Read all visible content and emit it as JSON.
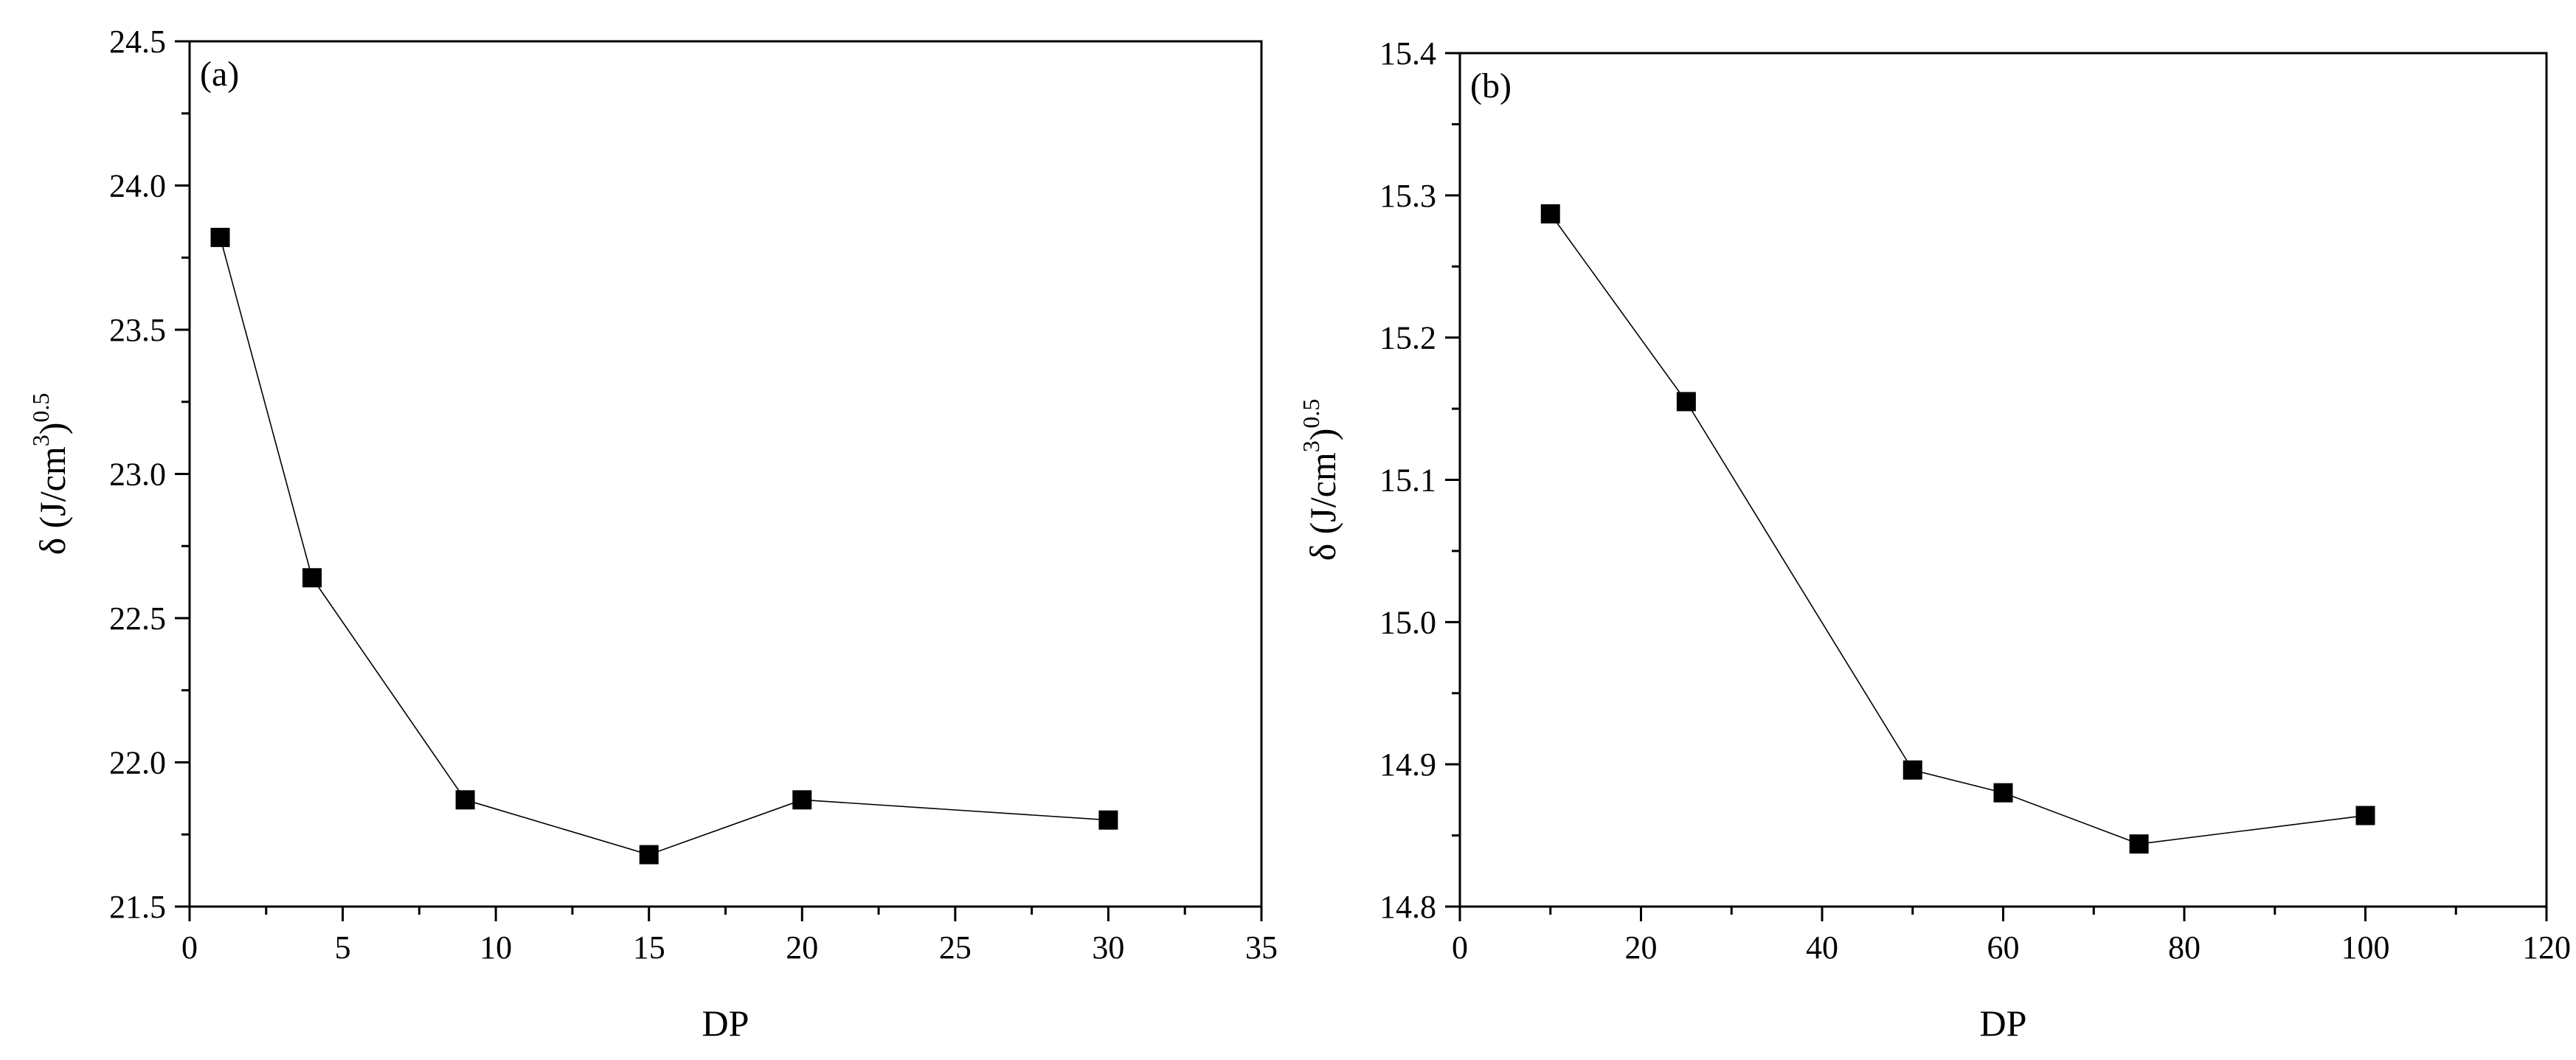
{
  "chart_data": [
    {
      "type": "line",
      "panel_label": "(a)",
      "xlabel": "DP",
      "ylabel": {
        "symbol": "δ (J/cm",
        "exp1": "3",
        "close": ")",
        "exp2": "0.5"
      },
      "xlim": [
        0,
        35
      ],
      "ylim": [
        21.5,
        24.5
      ],
      "xticks": [
        0,
        5,
        10,
        15,
        20,
        25,
        30,
        35
      ],
      "xtick_labels": [
        "0",
        "5",
        "10",
        "15",
        "20",
        "25",
        "30",
        "35"
      ],
      "yticks": [
        21.5,
        22.0,
        22.5,
        23.0,
        23.5,
        24.0,
        24.5
      ],
      "ytick_labels": [
        "21.5",
        "22.0",
        "22.5",
        "23.0",
        "23.5",
        "24.0",
        "24.5"
      ],
      "marker": "square",
      "grid": false,
      "series": [
        {
          "x": [
            1,
            4,
            9,
            15,
            20,
            30
          ],
          "y": [
            23.82,
            22.64,
            21.87,
            21.68,
            21.87,
            21.8
          ]
        }
      ]
    },
    {
      "type": "line",
      "panel_label": "(b)",
      "xlabel": "DP",
      "ylabel": {
        "symbol": "δ (J/cm",
        "exp1": "3",
        "close": ")",
        "exp2": "0.5"
      },
      "xlim": [
        0,
        120
      ],
      "ylim": [
        14.8,
        15.4
      ],
      "xticks": [
        0,
        20,
        40,
        60,
        80,
        100,
        120
      ],
      "xtick_labels": [
        "0",
        "20",
        "40",
        "60",
        "80",
        "100",
        "120"
      ],
      "yticks": [
        14.8,
        14.9,
        15.0,
        15.1,
        15.2,
        15.3,
        15.4
      ],
      "ytick_labels": [
        "14.8",
        "14.9",
        "15.0",
        "15.1",
        "15.2",
        "15.3",
        "15.4"
      ],
      "marker": "square",
      "grid": false,
      "series": [
        {
          "x": [
            10,
            25,
            50,
            60,
            75,
            100
          ],
          "y": [
            15.287,
            15.155,
            14.896,
            14.88,
            14.844,
            14.864
          ]
        }
      ]
    }
  ]
}
